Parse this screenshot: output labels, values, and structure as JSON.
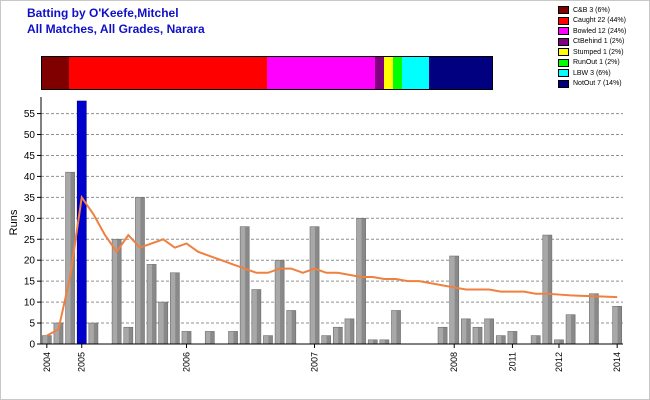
{
  "header": {
    "line1": "Batting by O'Keefe,Mitchel",
    "line2": "All Matches, All Grades, Narara"
  },
  "dismissals": [
    {
      "label": "C&B 3 (6%)",
      "count": 3,
      "color": "#800000"
    },
    {
      "label": "Caught 22 (44%)",
      "count": 22,
      "color": "#ff0000"
    },
    {
      "label": "Bowled 12 (24%)",
      "count": 12,
      "color": "#ff00ff"
    },
    {
      "label": "CtBehind 1 (2%)",
      "count": 1,
      "color": "#800080"
    },
    {
      "label": "Stumped 1 (2%)",
      "count": 1,
      "color": "#ffff00"
    },
    {
      "label": "RunOut 1 (2%)",
      "count": 1,
      "color": "#00ff00"
    },
    {
      "label": "LBW 3 (6%)",
      "count": 3,
      "color": "#00ffff"
    },
    {
      "label": "NotOut 7 (14%)",
      "count": 7,
      "color": "#000080"
    }
  ],
  "chart_data": {
    "type": "bar",
    "ylabel": "Runs",
    "ylim": [
      0,
      58
    ],
    "yticks": [
      0,
      5,
      10,
      15,
      20,
      25,
      30,
      35,
      40,
      45,
      50,
      55
    ],
    "grid": "horizontal dashed",
    "x_tick_labels": [
      "2004",
      "2005",
      "2006",
      "2007",
      "2008",
      "2011",
      "2012",
      "2014"
    ],
    "x_tick_positions": [
      0,
      3,
      12,
      23,
      35,
      40,
      44,
      49
    ],
    "innings_count": 50,
    "values": [
      2,
      5,
      41,
      58,
      5,
      0,
      25,
      4,
      35,
      19,
      10,
      17,
      3,
      0,
      3,
      0,
      3,
      28,
      13,
      2,
      20,
      8,
      0,
      28,
      2,
      4,
      6,
      30,
      1,
      1,
      8,
      0,
      0,
      0,
      4,
      21,
      6,
      4,
      6,
      2,
      3,
      0,
      2,
      26,
      1,
      7,
      0,
      12,
      0,
      9
    ],
    "highlight_index": 3,
    "colors": {
      "bar": "#a8a8a8",
      "highlight": "#0000cc",
      "average_line": "#f08040"
    },
    "average_line": "running average",
    "average": [
      2,
      3.5,
      16,
      35,
      31,
      26,
      22,
      26,
      23,
      24,
      25,
      23,
      24,
      22,
      21,
      20,
      19,
      18,
      17,
      17,
      18,
      18,
      17,
      18,
      17,
      17,
      16.5,
      16,
      16,
      15.5,
      15.5,
      15,
      15,
      14.5,
      14,
      13.5,
      13,
      13,
      13,
      12.5,
      12.5,
      12.5,
      12,
      12,
      11.8,
      11.6,
      11.5,
      11.4,
      11.3,
      11.2
    ]
  }
}
